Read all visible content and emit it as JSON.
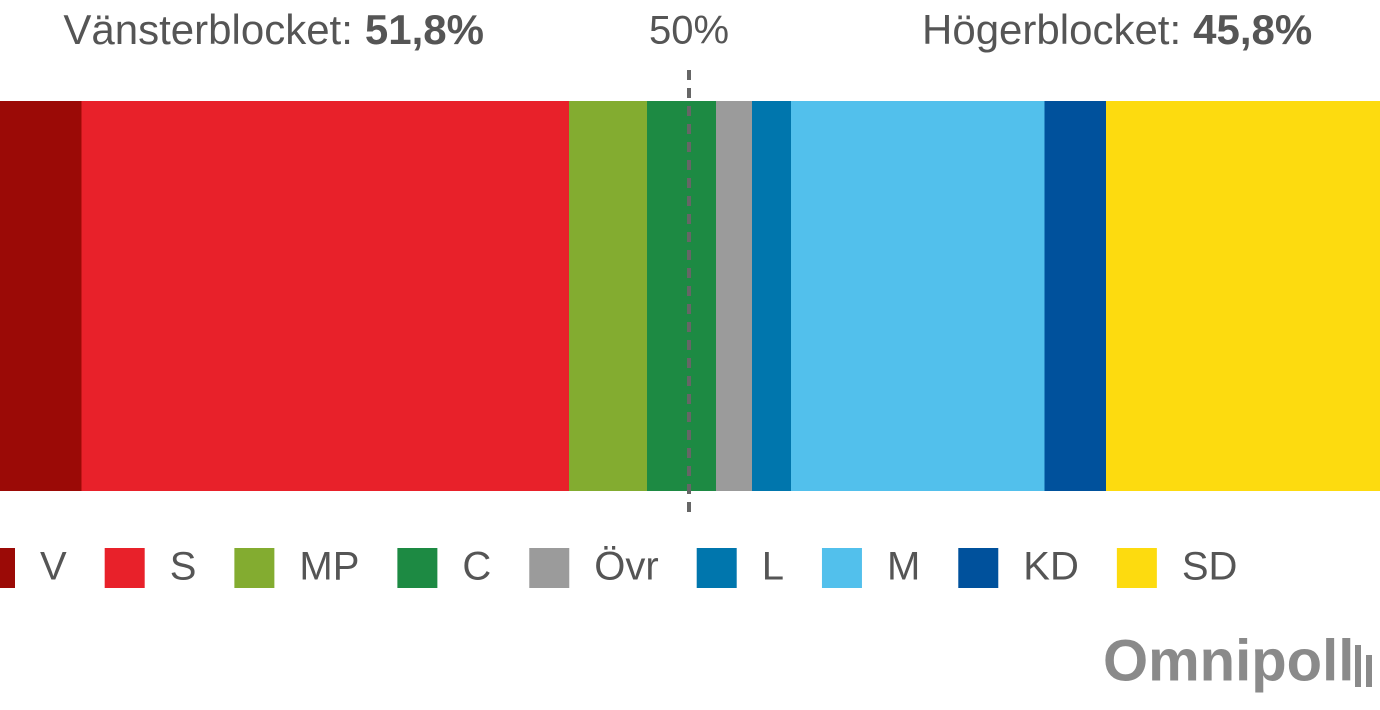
{
  "chart_data": {
    "type": "stacked-bar",
    "blocks": [
      {
        "label": "Vänsterblocket:",
        "value": 51.8,
        "value_label": "51,8%"
      },
      {
        "label": "Högerblocket:",
        "value": 45.8,
        "value_label": "45,8%"
      }
    ],
    "reference": {
      "value": 50,
      "label": "50%"
    },
    "xlim": [
      0,
      100
    ],
    "series": [
      {
        "name": "V",
        "color": "#9b0a06",
        "values": [
          9.5
        ]
      },
      {
        "name": "S",
        "color": "#e8212a",
        "values": [
          32.5
        ]
      },
      {
        "name": "MP",
        "color": "#83ac30",
        "values": [
          5.2
        ]
      },
      {
        "name": "C",
        "color": "#1d8a43",
        "values": [
          4.6
        ]
      },
      {
        "name": "Övr",
        "color": "#9b9b9b",
        "values": [
          2.4
        ]
      },
      {
        "name": "L",
        "color": "#0076ad",
        "values": [
          2.6
        ]
      },
      {
        "name": "M",
        "color": "#52c0ec",
        "values": [
          16.9
        ]
      },
      {
        "name": "KD",
        "color": "#00519c",
        "values": [
          4.1
        ]
      },
      {
        "name": "SD",
        "color": "#fddb0f",
        "values": [
          22.2
        ]
      }
    ],
    "source": "Omnipoll"
  }
}
